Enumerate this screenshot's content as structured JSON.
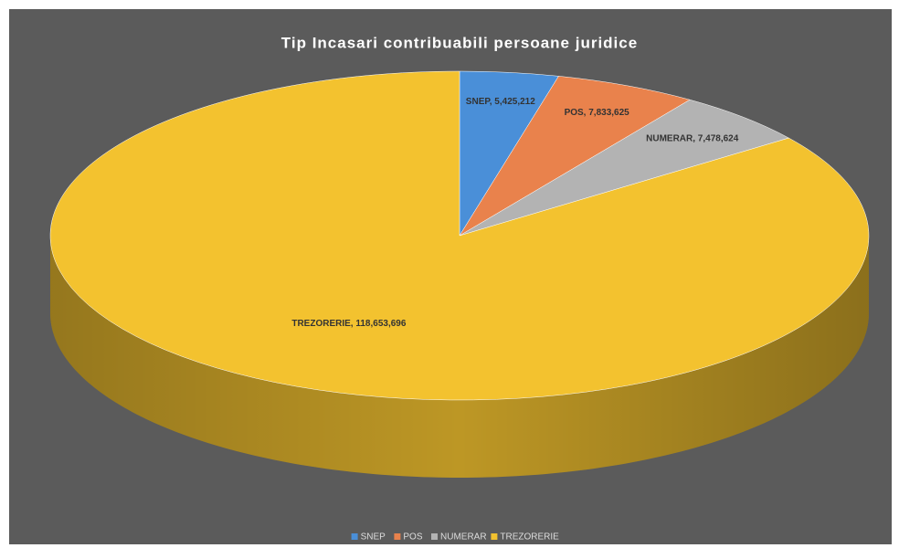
{
  "chart_data": {
    "type": "pie",
    "title": "Tip Incasari contribuabili persoane juridice",
    "categories": [
      "SNEP",
      "POS",
      "NUMERAR",
      "TREZORERIE"
    ],
    "values": [
      5425212,
      7833625,
      7478624,
      118653696
    ],
    "value_labels": [
      "SNEP, 5,425,212",
      "POS, 7,833,625",
      "NUMERAR, 7,478,624",
      "TREZORERIE, 118,653,696"
    ],
    "colors": [
      "#4a8fd8",
      "#e9824c",
      "#b3b3b3",
      "#f3c22f"
    ],
    "legend": "bottom"
  }
}
